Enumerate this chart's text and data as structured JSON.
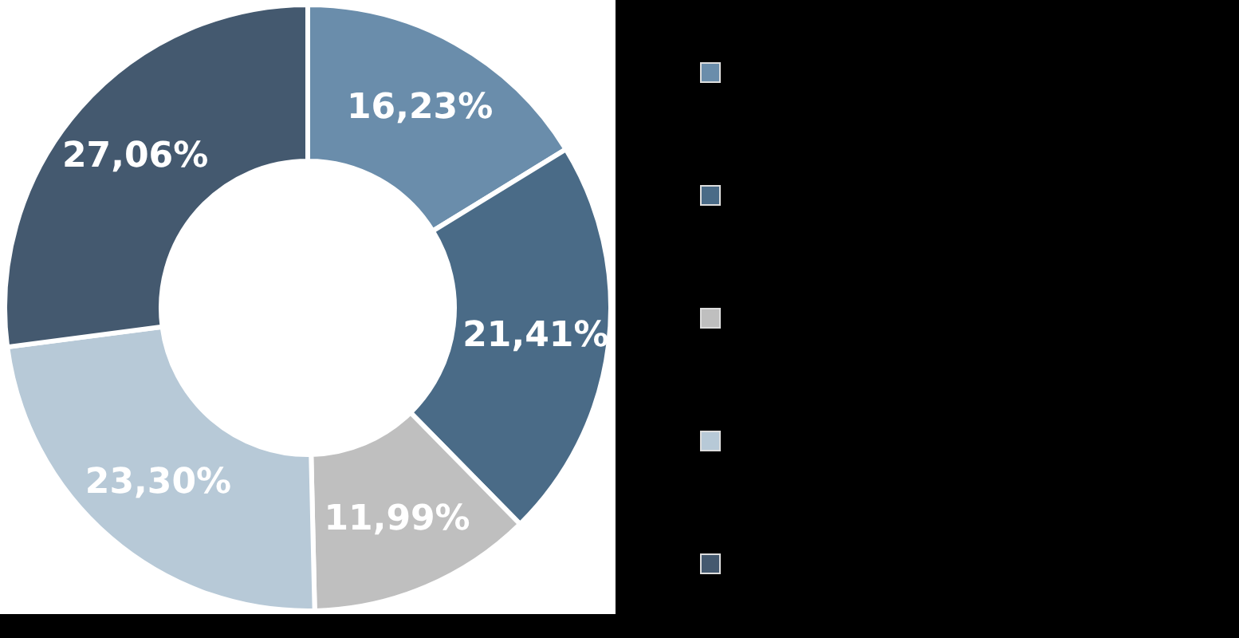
{
  "chart_data": {
    "type": "donut",
    "categories": [
      null,
      null,
      null,
      null,
      null
    ],
    "values": [
      16.23,
      21.41,
      11.99,
      23.3,
      27.06
    ],
    "colors": [
      "#6a8dab",
      "#4a6b87",
      "#bfbfbf",
      "#b7c9d7",
      "#44596f"
    ],
    "value_labels": [
      "16,23%",
      "21,41%",
      "11,99%",
      "23,30%",
      "27,06%"
    ]
  }
}
